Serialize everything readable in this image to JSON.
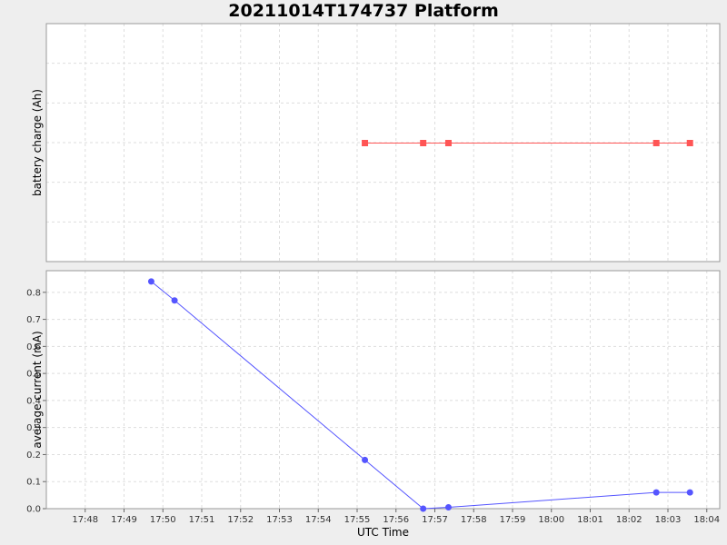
{
  "title": "20211014T174737 Platform",
  "colors": {
    "background": "#eeeeee",
    "plot_bg": "#ffffff",
    "grid": "#dddddd",
    "battery_series": "#ff5555",
    "current_series": "#5555ff"
  },
  "chart_data": [
    {
      "type": "line",
      "ylabel": "battery charge (Ah)",
      "yticks_visible": false,
      "grid": true,
      "marker": "square",
      "series": [
        {
          "x": [
            "17:55:12",
            "17:56:42",
            "17:57:21",
            "18:02:42",
            "18:03:34"
          ],
          "y": [
            1,
            1,
            1,
            1,
            1
          ]
        }
      ]
    },
    {
      "type": "line",
      "ylabel": "average current (mA)",
      "ylim": [
        0,
        0.88
      ],
      "yticks": [
        "0.0",
        "0.1",
        "0.2",
        "0.3",
        "0.4",
        "0.5",
        "0.6",
        "0.7",
        "0.8"
      ],
      "grid": true,
      "marker": "circle",
      "series": [
        {
          "x": [
            "17:49:42",
            "17:50:18",
            "17:55:12",
            "17:56:42",
            "17:57:21",
            "18:02:42",
            "18:03:34"
          ],
          "y": [
            0.84,
            0.77,
            0.18,
            0.0,
            0.005,
            0.06,
            0.06
          ]
        }
      ]
    }
  ],
  "x_axis": {
    "label": "UTC Time",
    "range": [
      "17:47:00",
      "18:04:20"
    ],
    "ticks": [
      "17:48",
      "17:49",
      "17:50",
      "17:51",
      "17:52",
      "17:53",
      "17:54",
      "17:55",
      "17:56",
      "17:57",
      "17:58",
      "17:59",
      "18:00",
      "18:01",
      "18:02",
      "18:03",
      "18:04"
    ]
  }
}
